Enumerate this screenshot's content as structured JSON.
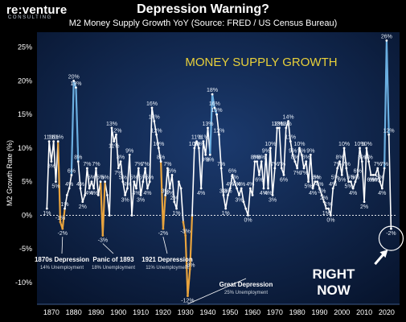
{
  "logo": {
    "brand": "re:venture",
    "sub": "CONSULTING"
  },
  "header": {
    "title": "Depression Warning?",
    "subtitle": "M2 Money Supply Growth YoY  (Source: FRED / US Census Bureau)"
  },
  "colors": {
    "background": "#000000",
    "plot_bg": "#0f2247",
    "line": "#ffffff",
    "spike": "#6aaee0",
    "depression": "#e8a33d",
    "headline": "#e8d03a"
  },
  "chart_data": {
    "type": "line",
    "title": "Depression Warning?",
    "subtitle": "M2 Money Supply Growth YoY  (Source: FRED / US Census Bureau)",
    "ylabel": "M2 Growth Rate (%)",
    "xlabel": "",
    "xlim": [
      1865,
      2024
    ],
    "ylim": [
      -13,
      27
    ],
    "xticks": [
      1870,
      1880,
      1890,
      1900,
      1910,
      1920,
      1930,
      1940,
      1950,
      1960,
      1970,
      1980,
      1990,
      2000,
      2010,
      2020
    ],
    "yticks": [
      25,
      20,
      15,
      10,
      5,
      0,
      -5,
      -10
    ],
    "ytick_labels": [
      "25%",
      "20%",
      "15%",
      "10%",
      "5%",
      "0%",
      "-5%",
      "-10%"
    ],
    "grid": false,
    "headline": "MONEY SUPPLY GROWTH",
    "points": [
      {
        "x": 1868,
        "y": 1,
        "label": "1%"
      },
      {
        "x": 1869,
        "y": 11,
        "label": "11%"
      },
      {
        "x": 1870,
        "y": 8,
        "label": "8%"
      },
      {
        "x": 1871,
        "y": 11,
        "label": "11%"
      },
      {
        "x": 1872,
        "y": 5,
        "label": "5%"
      },
      {
        "x": 1873,
        "y": 11,
        "label": "11%"
      },
      {
        "x": 1874,
        "y": -1,
        "label": "-1%"
      },
      {
        "x": 1875,
        "y": -2,
        "label": "-2%"
      },
      {
        "x": 1876,
        "y": 1,
        "label": "1%"
      },
      {
        "x": 1877,
        "y": 3,
        "label": ""
      },
      {
        "x": 1878,
        "y": 4,
        "label": "4%"
      },
      {
        "x": 1879,
        "y": 6,
        "label": "6%"
      },
      {
        "x": 1880,
        "y": 20,
        "label": "20%"
      },
      {
        "x": 1881,
        "y": 19,
        "label": "19%"
      },
      {
        "x": 1882,
        "y": 8,
        "label": "8%"
      },
      {
        "x": 1883,
        "y": 4,
        "label": "4%"
      },
      {
        "x": 1884,
        "y": 2,
        "label": "2%"
      },
      {
        "x": 1885,
        "y": 3,
        "label": ""
      },
      {
        "x": 1886,
        "y": 7,
        "label": "7%"
      },
      {
        "x": 1887,
        "y": 4,
        "label": "4%"
      },
      {
        "x": 1888,
        "y": 5,
        "label": "5%"
      },
      {
        "x": 1889,
        "y": 4,
        "label": "4%"
      },
      {
        "x": 1890,
        "y": 7,
        "label": "7%"
      },
      {
        "x": 1891,
        "y": 3,
        "label": ""
      },
      {
        "x": 1892,
        "y": 5,
        "label": "5%"
      },
      {
        "x": 1893,
        "y": -3,
        "label": "-3%"
      },
      {
        "x": 1894,
        "y": 5,
        "label": "5%"
      },
      {
        "x": 1895,
        "y": 3,
        "label": ""
      },
      {
        "x": 1896,
        "y": 0,
        "label": ""
      },
      {
        "x": 1897,
        "y": 13,
        "label": "13%"
      },
      {
        "x": 1898,
        "y": 11,
        "label": "11%"
      },
      {
        "x": 1899,
        "y": 12,
        "label": "12%"
      },
      {
        "x": 1900,
        "y": 7,
        "label": "7%"
      },
      {
        "x": 1901,
        "y": 8,
        "label": "8%"
      },
      {
        "x": 1902,
        "y": 5,
        "label": "5%"
      },
      {
        "x": 1903,
        "y": 3,
        "label": "3%"
      },
      {
        "x": 1904,
        "y": 4,
        "label": "4%"
      },
      {
        "x": 1905,
        "y": 9,
        "label": "9%"
      },
      {
        "x": 1906,
        "y": 0,
        "label": ""
      },
      {
        "x": 1907,
        "y": 5,
        "label": "5%"
      },
      {
        "x": 1908,
        "y": 4,
        "label": "4%"
      },
      {
        "x": 1909,
        "y": 7,
        "label": "7%"
      },
      {
        "x": 1910,
        "y": 3,
        "label": "3%"
      },
      {
        "x": 1911,
        "y": 5,
        "label": "5%"
      },
      {
        "x": 1912,
        "y": 7,
        "label": "7%"
      },
      {
        "x": 1913,
        "y": 4,
        "label": "4%"
      },
      {
        "x": 1914,
        "y": 5,
        "label": "5%"
      },
      {
        "x": 1915,
        "y": 16,
        "label": "16%"
      },
      {
        "x": 1916,
        "y": 14,
        "label": "14%"
      },
      {
        "x": 1917,
        "y": 12,
        "label": "12%"
      },
      {
        "x": 1918,
        "y": 10,
        "label": "10%"
      },
      {
        "x": 1919,
        "y": 8,
        "label": "8%"
      },
      {
        "x": 1920,
        "y": -2,
        "label": "-2%"
      },
      {
        "x": 1921,
        "y": 3,
        "label": "3%"
      },
      {
        "x": 1922,
        "y": 7,
        "label": "7%"
      },
      {
        "x": 1923,
        "y": 4,
        "label": "4%"
      },
      {
        "x": 1924,
        "y": 6,
        "label": "6%"
      },
      {
        "x": 1925,
        "y": 2,
        "label": "2%"
      },
      {
        "x": 1926,
        "y": 1,
        "label": "1%"
      },
      {
        "x": 1927,
        "y": 5,
        "label": ""
      },
      {
        "x": 1928,
        "y": 4,
        "label": ""
      },
      {
        "x": 1929,
        "y": -1,
        "label": ""
      },
      {
        "x": 1930,
        "y": -3,
        "label": "-3%"
      },
      {
        "x": 1931,
        "y": -12,
        "label": "-12%"
      },
      {
        "x": 1932,
        "y": -8,
        "label": "-8%"
      },
      {
        "x": 1933,
        "y": 0,
        "label": ""
      },
      {
        "x": 1934,
        "y": 10,
        "label": "10%"
      },
      {
        "x": 1935,
        "y": 11,
        "label": "11%"
      },
      {
        "x": 1936,
        "y": 10,
        "label": "10%"
      },
      {
        "x": 1937,
        "y": 4,
        "label": "4%"
      },
      {
        "x": 1938,
        "y": 11,
        "label": "11%"
      },
      {
        "x": 1939,
        "y": 9,
        "label": "9%"
      },
      {
        "x": 1940,
        "y": 13,
        "label": "13%"
      },
      {
        "x": 1941,
        "y": 9,
        "label": "9%"
      },
      {
        "x": 1942,
        "y": 18,
        "label": "18%"
      },
      {
        "x": 1943,
        "y": 16,
        "label": "16%"
      },
      {
        "x": 1944,
        "y": 15,
        "label": "15%"
      },
      {
        "x": 1945,
        "y": 12,
        "label": "12%"
      },
      {
        "x": 1946,
        "y": 7,
        "label": "7%"
      },
      {
        "x": 1947,
        "y": 3,
        "label": "3%"
      },
      {
        "x": 1948,
        "y": 1,
        "label": "1%"
      },
      {
        "x": 1949,
        "y": 3,
        "label": "3%"
      },
      {
        "x": 1950,
        "y": 4,
        "label": "4%"
      },
      {
        "x": 1951,
        "y": 6,
        "label": "6%"
      },
      {
        "x": 1952,
        "y": 5,
        "label": "5%"
      },
      {
        "x": 1953,
        "y": 4,
        "label": "4%"
      },
      {
        "x": 1954,
        "y": 3,
        "label": "3%"
      },
      {
        "x": 1955,
        "y": 4,
        "label": "4%"
      },
      {
        "x": 1956,
        "y": 2,
        "label": ""
      },
      {
        "x": 1957,
        "y": 1,
        "label": ""
      },
      {
        "x": 1958,
        "y": 0,
        "label": "0%"
      },
      {
        "x": 1959,
        "y": 4,
        "label": "4%"
      },
      {
        "x": 1960,
        "y": 3,
        "label": ""
      },
      {
        "x": 1961,
        "y": 8,
        "label": "8%"
      },
      {
        "x": 1962,
        "y": 8,
        "label": "8%"
      },
      {
        "x": 1963,
        "y": 6,
        "label": "6%"
      },
      {
        "x": 1964,
        "y": 8,
        "label": "8%"
      },
      {
        "x": 1965,
        "y": 4,
        "label": "4%"
      },
      {
        "x": 1966,
        "y": 9,
        "label": "9%"
      },
      {
        "x": 1967,
        "y": 4,
        "label": "4%"
      },
      {
        "x": 1968,
        "y": 10,
        "label": "10%"
      },
      {
        "x": 1969,
        "y": 3,
        "label": "3%"
      },
      {
        "x": 1970,
        "y": 7,
        "label": "7%"
      },
      {
        "x": 1971,
        "y": 13,
        "label": "13%"
      },
      {
        "x": 1972,
        "y": 13,
        "label": "13%"
      },
      {
        "x": 1973,
        "y": 7,
        "label": "7%"
      },
      {
        "x": 1974,
        "y": 6,
        "label": "6%"
      },
      {
        "x": 1975,
        "y": 13,
        "label": "13%"
      },
      {
        "x": 1976,
        "y": 14,
        "label": "14%"
      },
      {
        "x": 1977,
        "y": 11,
        "label": "11%"
      },
      {
        "x": 1978,
        "y": 9,
        "label": "9%"
      },
      {
        "x": 1979,
        "y": 8,
        "label": "8%"
      },
      {
        "x": 1980,
        "y": 7,
        "label": "7%"
      },
      {
        "x": 1981,
        "y": 10,
        "label": "10%"
      },
      {
        "x": 1982,
        "y": 9,
        "label": "9%"
      },
      {
        "x": 1983,
        "y": 7,
        "label": "7%"
      },
      {
        "x": 1984,
        "y": 8,
        "label": "8%"
      },
      {
        "x": 1985,
        "y": 5,
        "label": "5%"
      },
      {
        "x": 1986,
        "y": 9,
        "label": "9%"
      },
      {
        "x": 1987,
        "y": 4,
        "label": "4%"
      },
      {
        "x": 1988,
        "y": 5,
        "label": "5%"
      },
      {
        "x": 1989,
        "y": 5,
        "label": "5%"
      },
      {
        "x": 1990,
        "y": 4,
        "label": "4%"
      },
      {
        "x": 1991,
        "y": 3,
        "label": "3%"
      },
      {
        "x": 1992,
        "y": 2,
        "label": "2%"
      },
      {
        "x": 1993,
        "y": 1,
        "label": "1%"
      },
      {
        "x": 1994,
        "y": 1,
        "label": "1%"
      },
      {
        "x": 1995,
        "y": 0,
        "label": "0%"
      },
      {
        "x": 1996,
        "y": 4,
        "label": "4%"
      },
      {
        "x": 1997,
        "y": 5,
        "label": "5%"
      },
      {
        "x": 1998,
        "y": 7,
        "label": "7%"
      },
      {
        "x": 1999,
        "y": 8,
        "label": "8%"
      },
      {
        "x": 2000,
        "y": 6,
        "label": "6%"
      },
      {
        "x": 2001,
        "y": 10,
        "label": "10%"
      },
      {
        "x": 2002,
        "y": 7,
        "label": "7%"
      },
      {
        "x": 2003,
        "y": 5,
        "label": "5%"
      },
      {
        "x": 2004,
        "y": 5,
        "label": "5%"
      },
      {
        "x": 2005,
        "y": 4,
        "label": "4%"
      },
      {
        "x": 2006,
        "y": 5,
        "label": "5%"
      },
      {
        "x": 2007,
        "y": 6,
        "label": "6%"
      },
      {
        "x": 2008,
        "y": 10,
        "label": "10%"
      },
      {
        "x": 2009,
        "y": 8,
        "label": "8%"
      },
      {
        "x": 2010,
        "y": 2,
        "label": "2%"
      },
      {
        "x": 2011,
        "y": 10,
        "label": "10%"
      },
      {
        "x": 2012,
        "y": 8,
        "label": "8%"
      },
      {
        "x": 2013,
        "y": 6,
        "label": "6%"
      },
      {
        "x": 2014,
        "y": 6,
        "label": "6%"
      },
      {
        "x": 2015,
        "y": 6,
        "label": "6%"
      },
      {
        "x": 2016,
        "y": 7,
        "label": "7%"
      },
      {
        "x": 2017,
        "y": 5,
        "label": "5%"
      },
      {
        "x": 2018,
        "y": 4,
        "label": "4%"
      },
      {
        "x": 2019,
        "y": 7,
        "label": "7%"
      },
      {
        "x": 2020,
        "y": 26,
        "label": "26%"
      },
      {
        "x": 2021,
        "y": 12,
        "label": "12%"
      },
      {
        "x": 2022,
        "y": -2,
        "label": "-2%"
      }
    ],
    "depression_dips": [
      {
        "from": 1873,
        "to": 1876
      },
      {
        "from": 1892,
        "to": 1894
      },
      {
        "from": 1919,
        "to": 1921
      },
      {
        "from": 1929,
        "to": 1933
      }
    ],
    "spikes": [
      {
        "from": 1879,
        "to": 1882
      },
      {
        "from": 1941,
        "to": 1944
      },
      {
        "from": 2019,
        "to": 2021
      }
    ],
    "annotations": [
      {
        "title": "1870s Depression",
        "sub": "14% Unemployment",
        "x": 1875,
        "y": -2
      },
      {
        "title": "Panic of 1893",
        "sub": "18% Unemployment",
        "x": 1893,
        "y": -3
      },
      {
        "title": "1921 Depression",
        "sub": "11% Unemployment",
        "x": 1920,
        "y": -2
      },
      {
        "title": "Great Depression",
        "sub": "25% Unemployment",
        "x": 1931,
        "y": -12
      }
    ],
    "callout": {
      "text_line1": "RIGHT",
      "text_line2": "NOW",
      "x": 2022,
      "y": -2
    }
  }
}
